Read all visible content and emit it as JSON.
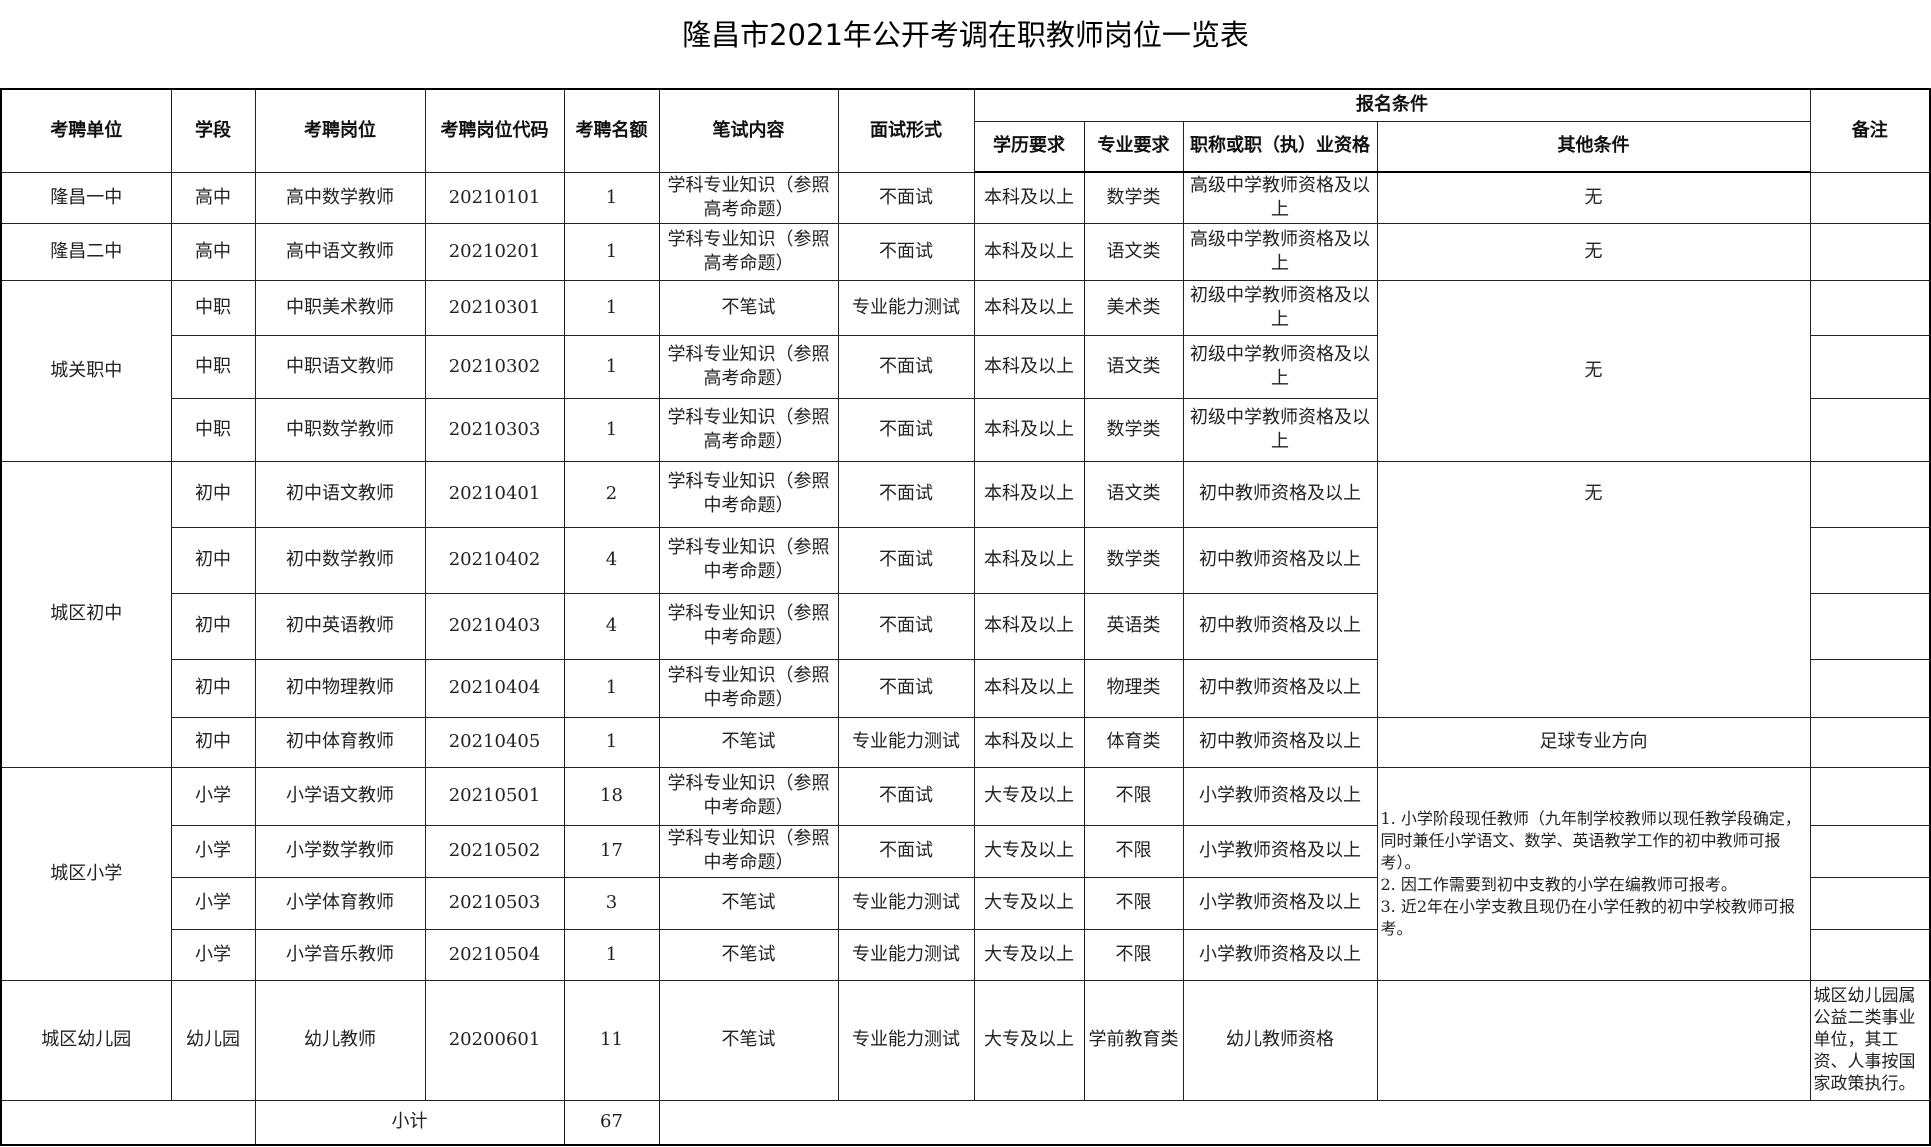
{
  "title": "隆昌市2021年公开考调在职教师岗位一览表",
  "headers": {
    "unit": "考聘单位",
    "stage": "学段",
    "position": "考聘岗位",
    "code": "考聘岗位代码",
    "quota": "考聘名额",
    "written": "笔试内容",
    "interview": "面试形式",
    "conditions": "报名条件",
    "education": "学历要求",
    "major": "专业要求",
    "qualification": "职称或职（执）业资格",
    "other": "其他条件",
    "remarks": "备注"
  },
  "units": [
    {
      "name": "隆昌一中",
      "rows": 1
    },
    {
      "name": "隆昌二中",
      "rows": 1
    },
    {
      "name": "城关职中",
      "rows": 3
    },
    {
      "name": "城区初中",
      "rows": 5
    },
    {
      "name": "城区小学",
      "rows": 4
    },
    {
      "name": "城区幼儿园",
      "rows": 1
    }
  ],
  "other_conditions": [
    {
      "text": "无",
      "rows": 1
    },
    {
      "text": "无",
      "rows": 1
    },
    {
      "text": "无",
      "rows": 3
    },
    {
      "text": "无",
      "rows": 4,
      "align": "top"
    },
    {
      "text": "足球专业方向",
      "rows": 1
    },
    {
      "text": "1. 小学阶段现任教师（九年制学校教师以现任教学段确定，同时兼任小学语文、数学、英语教学工作的初中教师可报考）。\n2. 因工作需要到初中支教的小学在编教师可报考。\n3. 近2年在小学支教且现仍在小学任教的初中学校教师可报考。",
      "rows": 4,
      "align": "left"
    },
    {
      "text": "",
      "rows": 1
    }
  ],
  "rows": [
    {
      "stage": "高中",
      "position": "高中数学教师",
      "code": "20210101",
      "quota": "1",
      "written": "学科专业知识（参照高考命题）",
      "interview": "不面试",
      "education": "本科及以上",
      "major": "数学类",
      "qualification": "高级中学教师资格及以上",
      "remarks": ""
    },
    {
      "stage": "高中",
      "position": "高中语文教师",
      "code": "20210201",
      "quota": "1",
      "written": "学科专业知识（参照高考命题）",
      "interview": "不面试",
      "education": "本科及以上",
      "major": "语文类",
      "qualification": "高级中学教师资格及以上",
      "remarks": ""
    },
    {
      "stage": "中职",
      "position": "中职美术教师",
      "code": "20210301",
      "quota": "1",
      "written": "不笔试",
      "interview": "专业能力测试",
      "education": "本科及以上",
      "major": "美术类",
      "qualification": "初级中学教师资格及以上",
      "remarks": ""
    },
    {
      "stage": "中职",
      "position": "中职语文教师",
      "code": "20210302",
      "quota": "1",
      "written": "学科专业知识（参照高考命题）",
      "interview": "不面试",
      "education": "本科及以上",
      "major": "语文类",
      "qualification": "初级中学教师资格及以上",
      "remarks": ""
    },
    {
      "stage": "中职",
      "position": "中职数学教师",
      "code": "20210303",
      "quota": "1",
      "written": "学科专业知识（参照高考命题）",
      "interview": "不面试",
      "education": "本科及以上",
      "major": "数学类",
      "qualification": "初级中学教师资格及以上",
      "remarks": ""
    },
    {
      "stage": "初中",
      "position": "初中语文教师",
      "code": "20210401",
      "quota": "2",
      "written": "学科专业知识（参照中考命题）",
      "interview": "不面试",
      "education": "本科及以上",
      "major": "语文类",
      "qualification": "初中教师资格及以上",
      "remarks": ""
    },
    {
      "stage": "初中",
      "position": "初中数学教师",
      "code": "20210402",
      "quota": "4",
      "written": "学科专业知识（参照中考命题）",
      "interview": "不面试",
      "education": "本科及以上",
      "major": "数学类",
      "qualification": "初中教师资格及以上",
      "remarks": ""
    },
    {
      "stage": "初中",
      "position": "初中英语教师",
      "code": "20210403",
      "quota": "4",
      "written": "学科专业知识（参照中考命题）",
      "interview": "不面试",
      "education": "本科及以上",
      "major": "英语类",
      "qualification": "初中教师资格及以上",
      "remarks": ""
    },
    {
      "stage": "初中",
      "position": "初中物理教师",
      "code": "20210404",
      "quota": "1",
      "written": "学科专业知识（参照中考命题）",
      "interview": "不面试",
      "education": "本科及以上",
      "major": "物理类",
      "qualification": "初中教师资格及以上",
      "remarks": ""
    },
    {
      "stage": "初中",
      "position": "初中体育教师",
      "code": "20210405",
      "quota": "1",
      "written": "不笔试",
      "interview": "专业能力测试",
      "education": "本科及以上",
      "major": "体育类",
      "qualification": "初中教师资格及以上",
      "remarks": ""
    },
    {
      "stage": "小学",
      "position": "小学语文教师",
      "code": "20210501",
      "quota": "18",
      "written": "学科专业知识（参照中考命题）",
      "interview": "不面试",
      "education": "大专及以上",
      "major": "不限",
      "qualification": "小学教师资格及以上",
      "remarks": ""
    },
    {
      "stage": "小学",
      "position": "小学数学教师",
      "code": "20210502",
      "quota": "17",
      "written": "学科专业知识（参照中考命题）",
      "interview": "不面试",
      "education": "大专及以上",
      "major": "不限",
      "qualification": "小学教师资格及以上",
      "remarks": ""
    },
    {
      "stage": "小学",
      "position": "小学体育教师",
      "code": "20210503",
      "quota": "3",
      "written": "不笔试",
      "interview": "专业能力测试",
      "education": "大专及以上",
      "major": "不限",
      "qualification": "小学教师资格及以上",
      "remarks": ""
    },
    {
      "stage": "小学",
      "position": "小学音乐教师",
      "code": "20210504",
      "quota": "1",
      "written": "不笔试",
      "interview": "专业能力测试",
      "education": "大专及以上",
      "major": "不限",
      "qualification": "小学教师资格及以上",
      "remarks": ""
    },
    {
      "stage": "幼儿园",
      "position": "幼儿教师",
      "code": "20200601",
      "quota": "11",
      "written": "不笔试",
      "interview": "专业能力测试",
      "education": "大专及以上",
      "major": "学前教育类",
      "qualification": "幼儿教师资格",
      "remarks": "城区幼儿园属公益二类事业单位，其工资、人事按国家政策执行。"
    }
  ],
  "subtotal": {
    "label": "小计",
    "value": "67"
  }
}
